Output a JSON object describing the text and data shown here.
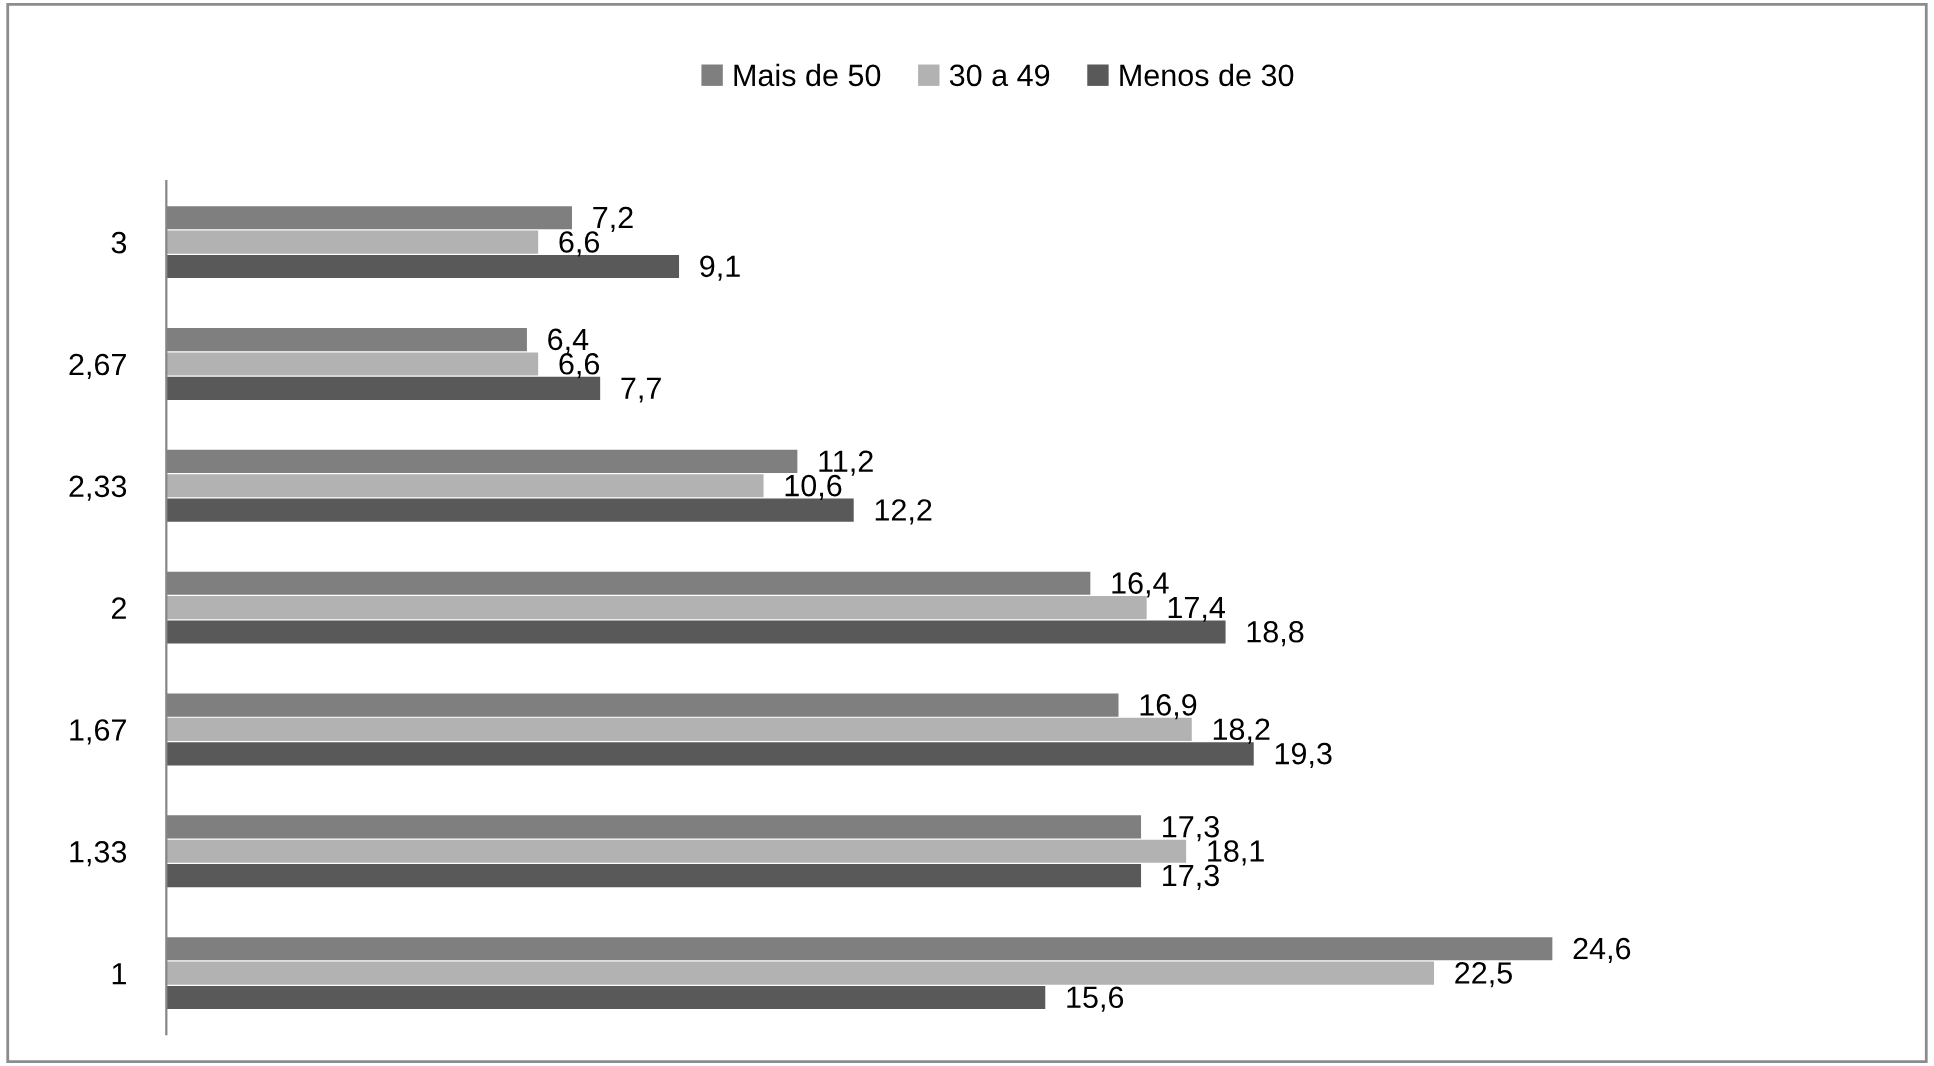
{
  "chart_data": {
    "type": "bar",
    "orientation": "horizontal",
    "legend": "top",
    "categories": [
      "3",
      "2,67",
      "2,33",
      "2",
      "1,67",
      "1,33",
      "1"
    ],
    "series": [
      {
        "name": "Mais de 50",
        "color": "#7f7f7f",
        "values": [
          7.2,
          6.4,
          11.2,
          16.4,
          16.9,
          17.3,
          24.6
        ],
        "value_labels": [
          "7,2",
          "6,4",
          "11,2",
          "16,4",
          "16,9",
          "17,3",
          "24,6"
        ]
      },
      {
        "name": "30 a 49",
        "color": "#b2b2b2",
        "values": [
          6.6,
          6.6,
          10.6,
          17.4,
          18.2,
          18.1,
          22.5
        ],
        "value_labels": [
          "6,6",
          "6,6",
          "10,6",
          "17,4",
          "18,2",
          "18,1",
          "22,5"
        ]
      },
      {
        "name": "Menos de 30",
        "color": "#595959",
        "values": [
          9.1,
          7.7,
          12.2,
          18.8,
          19.3,
          17.3,
          15.6
        ],
        "value_labels": [
          "9,1",
          "7,7",
          "12,2",
          "18,8",
          "19,3",
          "17,3",
          "15,6"
        ]
      }
    ]
  }
}
